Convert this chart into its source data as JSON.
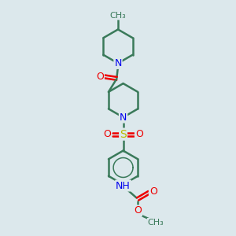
{
  "background_color": "#dce8ec",
  "bond_color": "#3a7a5a",
  "bond_width": 1.8,
  "N_color": "#0000ee",
  "O_color": "#ee0000",
  "S_color": "#bbbb00",
  "figsize": [
    3.0,
    3.0
  ],
  "dpi": 100,
  "xlim": [
    0,
    10
  ],
  "ylim": [
    0,
    10
  ]
}
